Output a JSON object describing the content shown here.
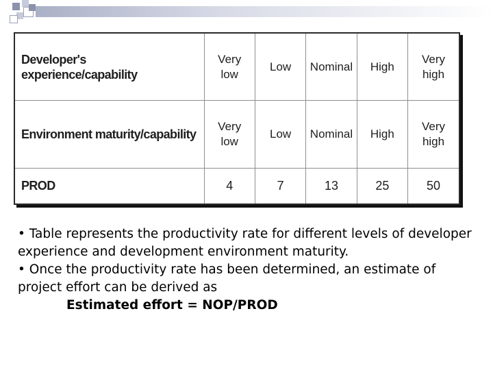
{
  "table": {
    "rows": [
      {
        "label": "Developer's experience/capability",
        "cells": [
          "Very\nlow",
          "Low",
          "Nominal",
          "High",
          "Very\nhigh"
        ]
      },
      {
        "label": "Environment maturity/capability",
        "cells": [
          "Very\nlow",
          "Low",
          "Nominal",
          "High",
          "Very\nhigh"
        ]
      },
      {
        "label": "PROD",
        "cells": [
          "4",
          "7",
          "13",
          "25",
          "50"
        ]
      }
    ]
  },
  "bullets": [
    "• Table represents the productivity rate for different levels of developer experience and development environment maturity.",
    "• Once the productivity rate has been determined, an estimate of project effort can be derived as"
  ],
  "formula": "Estimated effort = NOP/PROD"
}
